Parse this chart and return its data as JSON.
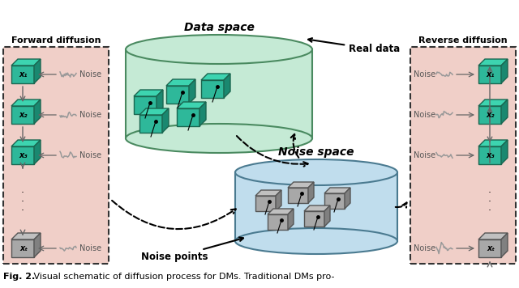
{
  "title_bold": "Fig. 2.",
  "title_rest": " Visual schematic of diffusion process for DMs. Traditional DMs pro-",
  "forward_label": "Forward diffusion",
  "reverse_label": "Reverse diffusion",
  "data_space_label": "Data space",
  "noise_space_label": "Noise space",
  "real_data_label": "Real data",
  "noise_points_label": "Noise points",
  "noise_label": "Noise",
  "forward_boxes": [
    "x₁",
    "x₂",
    "x₃",
    "xₜ"
  ],
  "reverse_boxes": [
    "x₁",
    "x₂",
    "x₃",
    "xₜ"
  ],
  "bg_color": "#ffffff",
  "forward_bg": "#f0cfc8",
  "reverse_bg": "#f0cfc8",
  "data_cylinder_fill": "#c5ead5",
  "data_cylinder_edge": "#4a8a60",
  "noise_cylinder_fill": "#c0dded",
  "noise_cylinder_edge": "#4a7a90",
  "teal_box_face": "#2eb89a",
  "teal_box_top": "#3dd4b0",
  "teal_box_right": "#1a8870",
  "teal_box_edge": "#1a6650",
  "gray_box_face": "#a8a8a8",
  "gray_box_top": "#c0c0c0",
  "gray_box_right": "#808080",
  "gray_box_edge": "#555555",
  "panel_edge": "#333333",
  "arrow_color": "#666666",
  "dashed_arrow_color": "#111111"
}
